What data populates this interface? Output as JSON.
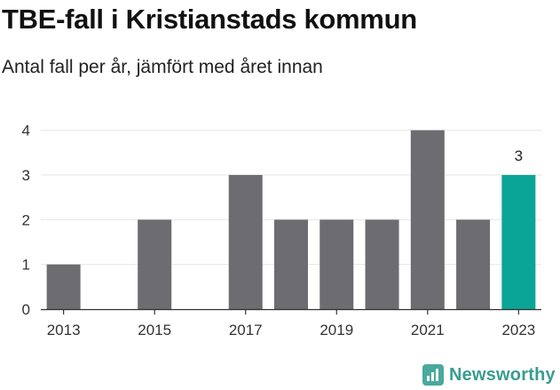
{
  "header": {
    "title": "TBE-fall i Kristianstads kommun",
    "subtitle": "Antal fall per år, jämfört med året innan"
  },
  "brand": {
    "name": "Newsworthy",
    "icon": "bar-chart-icon",
    "color": "#3a9c90"
  },
  "colors": {
    "bar": "#6d6c71",
    "highlight": "#0aa596",
    "axis": "#333333",
    "grid": "#e6e6e6"
  },
  "chart_data": {
    "type": "bar",
    "title": "TBE-fall i Kristianstads kommun",
    "subtitle": "Antal fall per år, jämfört med året innan",
    "categories": [
      "2013",
      "2014",
      "2015",
      "2016",
      "2017",
      "2018",
      "2019",
      "2020",
      "2021",
      "2022",
      "2023"
    ],
    "values": [
      1,
      0,
      2,
      0,
      3,
      2,
      2,
      2,
      4,
      2,
      3
    ],
    "highlight_index": 10,
    "data_labels": [
      {
        "index": 10,
        "text": "3"
      }
    ],
    "x_tick_labels": [
      "2013",
      "2015",
      "2017",
      "2019",
      "2021",
      "2023"
    ],
    "y_ticks": [
      0,
      1,
      2,
      3,
      4
    ],
    "ylim": [
      0,
      4.25
    ],
    "xlabel": "",
    "ylabel": "",
    "grid": true,
    "legend": "none"
  }
}
